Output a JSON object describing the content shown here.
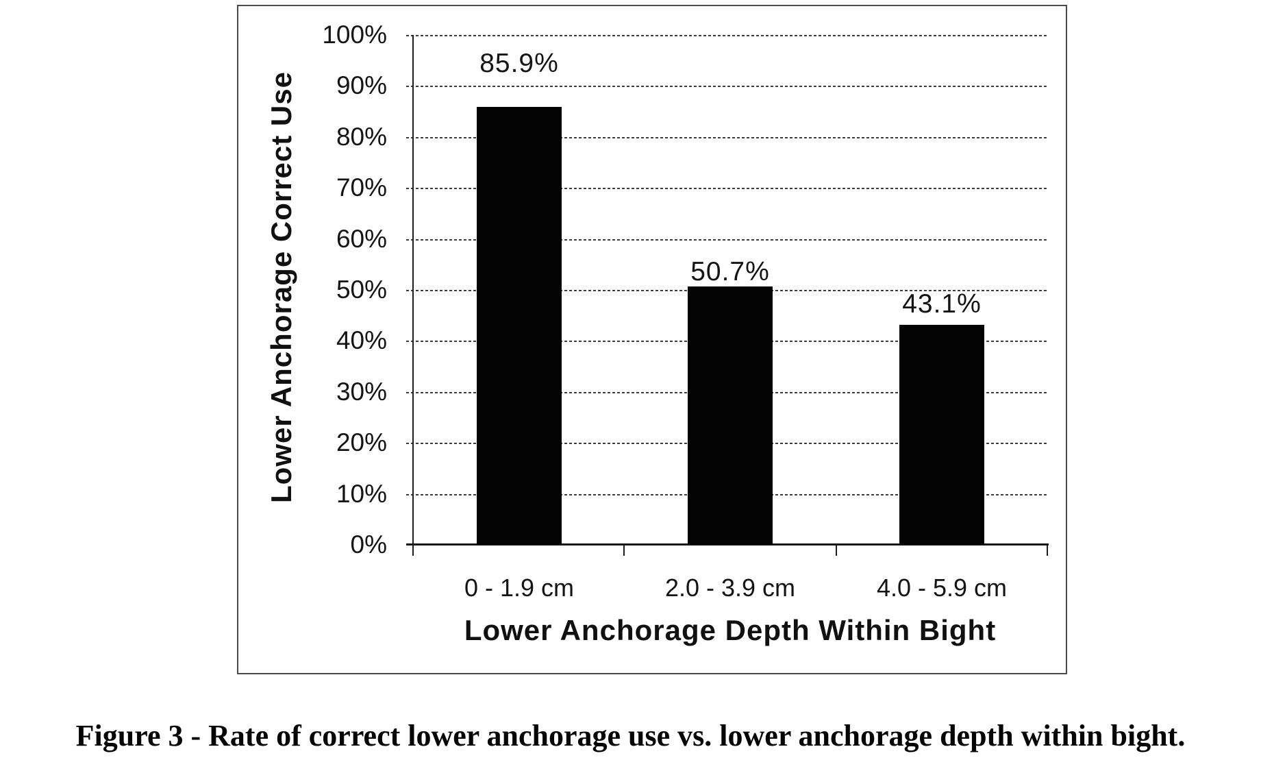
{
  "figure": {
    "caption": "Figure 3 - Rate of correct lower anchorage use vs. lower anchorage depth within bight."
  },
  "chart_data": {
    "type": "bar",
    "title": "",
    "categories": [
      "0 - 1.9 cm",
      "2.0 - 3.9 cm",
      "4.0 - 5.9 cm"
    ],
    "values": [
      85.9,
      50.7,
      43.1
    ],
    "data_labels": [
      "85.9%",
      "50.7%",
      "43.1%"
    ],
    "series": [
      {
        "name": "Lower Anchorage Correct Use",
        "values": [
          85.9,
          50.7,
          43.1
        ]
      }
    ],
    "xlabel": "Lower Anchorage Depth Within Bight",
    "ylabel": "Lower Anchorage Correct Use",
    "ylim": [
      0,
      100
    ],
    "ytick_interval": 10,
    "yticks": [
      "0%",
      "10%",
      "20%",
      "30%",
      "40%",
      "50%",
      "60%",
      "70%",
      "80%",
      "90%",
      "100%"
    ],
    "grid": "horizontal-dashed",
    "legend": "none",
    "bar_color": "#000000",
    "background_color": "#ffffff"
  }
}
